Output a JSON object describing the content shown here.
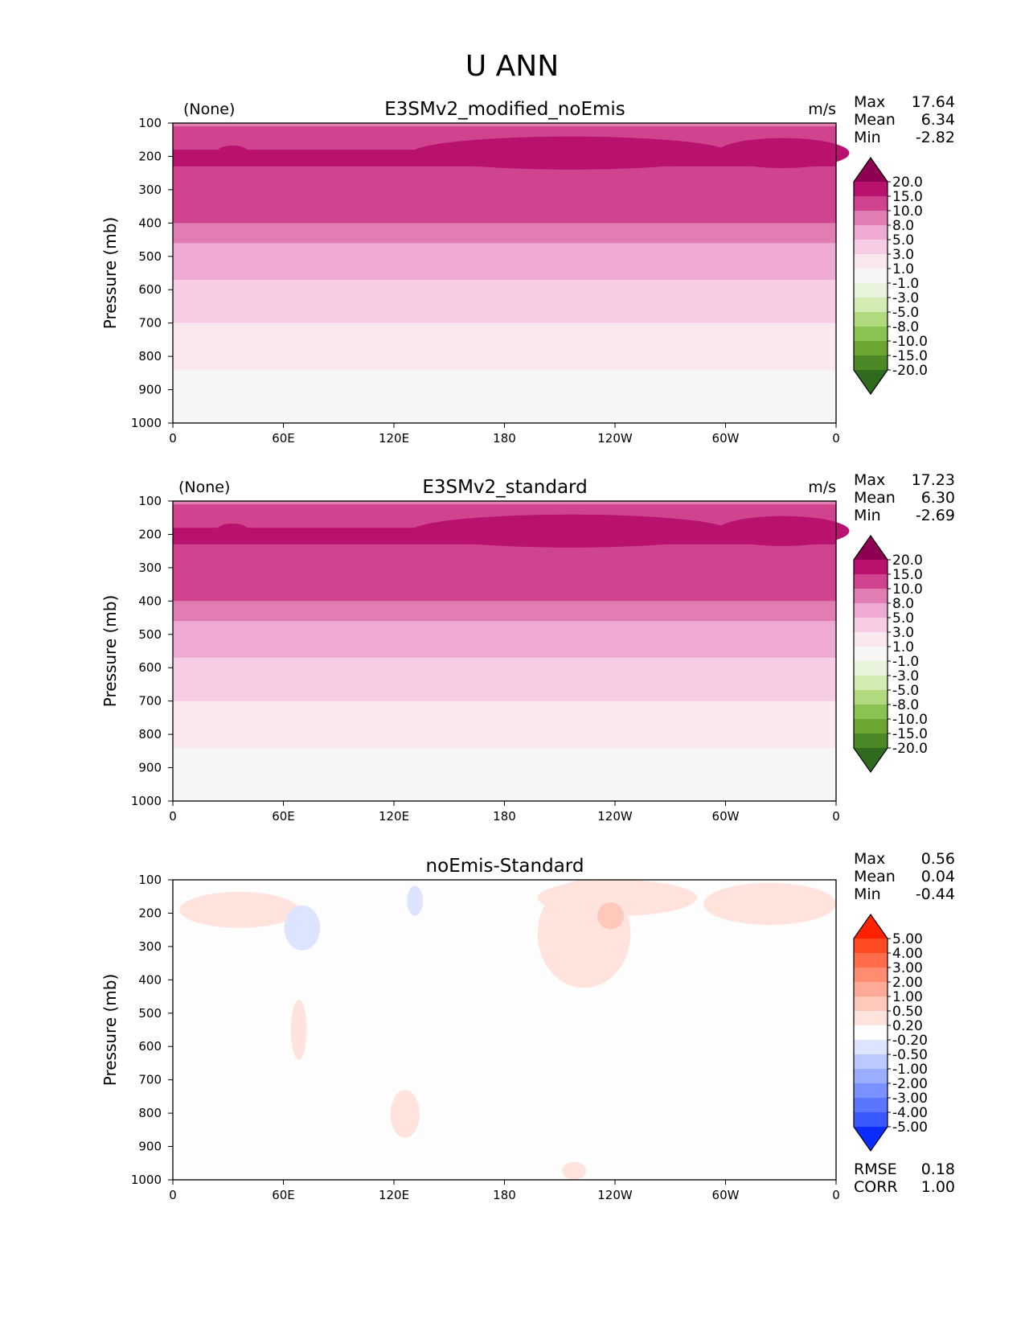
{
  "figure": {
    "title": "U ANN"
  },
  "chart_data": [
    {
      "type": "heatmap",
      "title": "E3SMv2_modified_noEmis",
      "left_label": "(None)",
      "units": "m/s",
      "ylabel": "Pressure (mb)",
      "xlabel": "",
      "x_ticks": [
        "0",
        "60E",
        "120E",
        "180",
        "120W",
        "60W",
        "0"
      ],
      "y_ticks": [
        "100",
        "200",
        "300",
        "400",
        "500",
        "600",
        "700",
        "800",
        "900",
        "1000"
      ],
      "x_range_deg": [
        0,
        360
      ],
      "y_range_mb": [
        100,
        1000
      ],
      "stats": [
        {
          "label": "Max",
          "value": "17.64"
        },
        {
          "label": "Mean",
          "value": "6.34"
        },
        {
          "label": "Min",
          "value": "-2.82"
        }
      ],
      "levels": [
        "20.0",
        "15.0",
        "10.0",
        "8.0",
        "5.0",
        "3.0",
        "1.0",
        "-1.0",
        "-3.0",
        "-5.0",
        "-8.0",
        "-10.0",
        "-15.0",
        "-20.0"
      ],
      "colors": [
        "#8e0152",
        "#b8126e",
        "#d0448f",
        "#e07db2",
        "#eeaad3",
        "#f7cce5",
        "#fae8f1",
        "#f6f6f4",
        "#e9f4dc",
        "#d2ecb2",
        "#b1da7f",
        "#8bc353",
        "#6aa631",
        "#4a8925",
        "#2e6b1f"
      ],
      "profile": [
        [
          100,
          9
        ],
        [
          150,
          14
        ],
        [
          200,
          16
        ],
        [
          300,
          13
        ],
        [
          400,
          10
        ],
        [
          500,
          6.5
        ],
        [
          600,
          4.5
        ],
        [
          700,
          3
        ],
        [
          800,
          1.5
        ],
        [
          900,
          0.3
        ],
        [
          1000,
          -0.4
        ]
      ]
    },
    {
      "type": "heatmap",
      "title": "E3SMv2_standard",
      "left_label": "(None)",
      "units": "m/s",
      "ylabel": "Pressure (mb)",
      "xlabel": "",
      "x_ticks": [
        "0",
        "60E",
        "120E",
        "180",
        "120W",
        "60W",
        "0"
      ],
      "y_ticks": [
        "100",
        "200",
        "300",
        "400",
        "500",
        "600",
        "700",
        "800",
        "900",
        "1000"
      ],
      "x_range_deg": [
        0,
        360
      ],
      "y_range_mb": [
        100,
        1000
      ],
      "stats": [
        {
          "label": "Max",
          "value": "17.23"
        },
        {
          "label": "Mean",
          "value": "6.30"
        },
        {
          "label": "Min",
          "value": "-2.69"
        }
      ],
      "levels": [
        "20.0",
        "15.0",
        "10.0",
        "8.0",
        "5.0",
        "3.0",
        "1.0",
        "-1.0",
        "-3.0",
        "-5.0",
        "-8.0",
        "-10.0",
        "-15.0",
        "-20.0"
      ],
      "colors": [
        "#8e0152",
        "#b8126e",
        "#d0448f",
        "#e07db2",
        "#eeaad3",
        "#f7cce5",
        "#fae8f1",
        "#f6f6f4",
        "#e9f4dc",
        "#d2ecb2",
        "#b1da7f",
        "#8bc353",
        "#6aa631",
        "#4a8925",
        "#2e6b1f"
      ],
      "profile": [
        [
          100,
          9
        ],
        [
          150,
          14
        ],
        [
          200,
          16
        ],
        [
          300,
          13
        ],
        [
          400,
          10
        ],
        [
          500,
          6.5
        ],
        [
          600,
          4.5
        ],
        [
          700,
          3
        ],
        [
          800,
          1.5
        ],
        [
          900,
          0.3
        ],
        [
          1000,
          -0.4
        ]
      ]
    },
    {
      "type": "heatmap",
      "title": "noEmis-Standard",
      "left_label": "",
      "units": "",
      "ylabel": "Pressure (mb)",
      "xlabel": "",
      "x_ticks": [
        "0",
        "60E",
        "120E",
        "180",
        "120W",
        "60W",
        "0"
      ],
      "y_ticks": [
        "100",
        "200",
        "300",
        "400",
        "500",
        "600",
        "700",
        "800",
        "900",
        "1000"
      ],
      "x_range_deg": [
        0,
        360
      ],
      "y_range_mb": [
        100,
        1000
      ],
      "stats": [
        {
          "label": "Max",
          "value": "0.56"
        },
        {
          "label": "Mean",
          "value": "0.04"
        },
        {
          "label": "Min",
          "value": "-0.44"
        }
      ],
      "metrics": [
        {
          "label": "RMSE",
          "value": "0.18"
        },
        {
          "label": "CORR",
          "value": "1.00"
        }
      ],
      "levels": [
        "5.00",
        "4.00",
        "3.00",
        "2.00",
        "1.00",
        "0.50",
        "0.20",
        "-0.20",
        "-0.50",
        "-1.00",
        "-2.00",
        "-3.00",
        "-4.00",
        "-5.00"
      ],
      "colors": [
        "#ff2200",
        "#ff4a22",
        "#fe6c4a",
        "#fe8c70",
        "#fdaa96",
        "#fec8bb",
        "#ffe3dc",
        "#fdfdfd",
        "#dde4ff",
        "#bcc9ff",
        "#9aadff",
        "#7a92ff",
        "#5a76ff",
        "#3a5aff",
        "#0a2cff"
      ]
    }
  ]
}
